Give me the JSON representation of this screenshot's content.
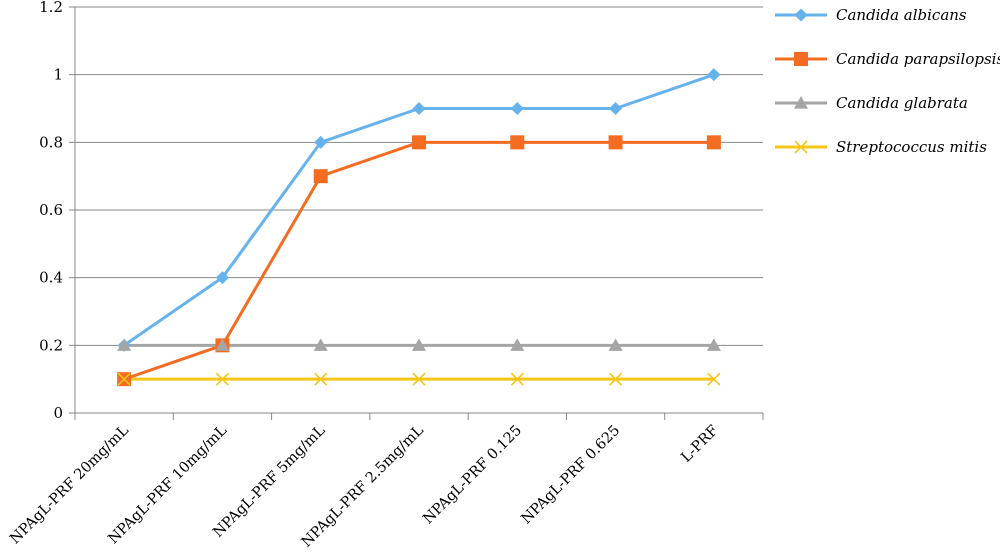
{
  "chart_data": {
    "type": "line",
    "categories": [
      "NPAgL-PRF 20mg/mL",
      "NPAgL-PRF 10mg/mL",
      "NPAgL-PRF 5mg/mL",
      "NPAgL-PRF 2.5mg/mL",
      "NPAgL-PRF 0.125",
      "NPAgL-PRF 0.625",
      "L-PRF"
    ],
    "ylim": [
      0,
      1.2
    ],
    "yticks": [
      "0",
      "0.2",
      "0.4",
      "0.6",
      "0.8",
      "1",
      "1.2"
    ],
    "grid": true,
    "legend_position": "right",
    "series": [
      {
        "name": "Candida albicans",
        "values": [
          0.2,
          0.4,
          0.8,
          0.9,
          0.9,
          0.9,
          1.0
        ],
        "color": "#66b2ec",
        "marker": "diamond"
      },
      {
        "name": "Candida parapsilopsis",
        "values": [
          0.1,
          0.2,
          0.7,
          0.8,
          0.8,
          0.8,
          0.8
        ],
        "color": "#f36c21",
        "marker": "square"
      },
      {
        "name": "Candida glabrata",
        "values": [
          0.2,
          0.2,
          0.2,
          0.2,
          0.2,
          0.2,
          0.2
        ],
        "color": "#a5a5a5",
        "marker": "triangle"
      },
      {
        "name": "Streptococcus mitis",
        "values": [
          0.1,
          0.1,
          0.1,
          0.1,
          0.1,
          0.1,
          0.1
        ],
        "color": "#f5c518",
        "marker": "x"
      }
    ]
  }
}
